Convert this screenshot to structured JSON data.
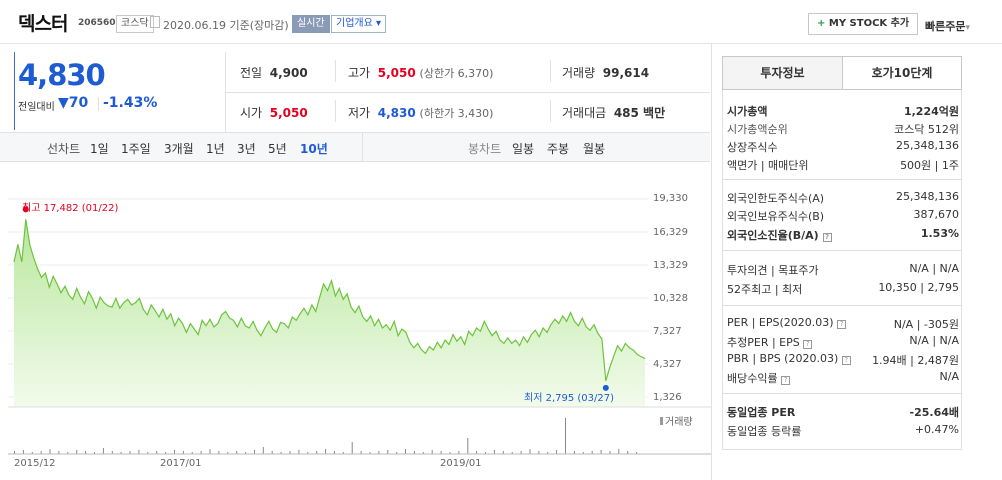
{
  "header": {
    "stock_name": "덱스터",
    "stock_code": "206560",
    "market_badge": "코스닥",
    "date_text": "2020.06.19 기준(장마감)",
    "realtime_badge": "실시간",
    "company_overview_button": "기업개요",
    "my_stock_button": "MY STOCK 추가",
    "quick_order_button": "빠른주문"
  },
  "price": {
    "current": "4,830",
    "change_label": "전일대비",
    "change_value": "70",
    "change_percent": "-1.43%"
  },
  "summary": {
    "prev_label": "전일",
    "prev_value": "4,900",
    "high_label": "고가",
    "high_value": "5,050",
    "high_limit": "(상한가 6,370)",
    "volume_label": "거래량",
    "volume_value": "99,614",
    "open_label": "시가",
    "open_value": "5,050",
    "low_label": "저가",
    "low_value": "4,830",
    "low_limit": "(하한가 3,430)",
    "amount_label": "거래대금",
    "amount_value": "485 백만"
  },
  "chart_nav": {
    "line_chart_label": "선차트",
    "periods": [
      "1일",
      "1주일",
      "3개월",
      "1년",
      "3년",
      "5년",
      "10년"
    ],
    "candle_chart_label": "봉차트",
    "candle_periods": [
      "일봉",
      "주봉",
      "월봉"
    ]
  },
  "chart_data": {
    "type": "area",
    "y_ticks": [
      "19,330",
      "16,329",
      "13,329",
      "10,328",
      "7,327",
      "4,327",
      "1,326"
    ],
    "x_ticks": [
      "2015/12",
      "2017/01",
      "2019/01"
    ],
    "high_annotation": "최고 17,482 (01/22)",
    "low_annotation": "최저 2,795 (03/27)",
    "volume_label": "거래량",
    "ylim": [
      1326,
      19330
    ],
    "values": [
      13600,
      15200,
      13600,
      17482,
      15200,
      14000,
      13000,
      12200,
      12600,
      11300,
      12300,
      11600,
      10800,
      11400,
      10600,
      10200,
      11200,
      10400,
      9800,
      10900,
      10300,
      9400,
      10400,
      9900,
      9600,
      9500,
      10300,
      9400,
      9900,
      10200,
      9700,
      9900,
      10300,
      9300,
      8800,
      9700,
      9200,
      8600,
      9300,
      8400,
      8900,
      7800,
      8500,
      8000,
      7200,
      8000,
      7500,
      7000,
      8300,
      7800,
      8400,
      7700,
      8000,
      8800,
      9100,
      8500,
      8300,
      7700,
      8500,
      7800,
      7600,
      8200,
      7400,
      6900,
      7600,
      8200,
      7500,
      7200,
      8100,
      8000,
      7600,
      8600,
      8300,
      8900,
      9400,
      8800,
      9700,
      9100,
      10400,
      11600,
      11000,
      11900,
      10500,
      11200,
      10200,
      10700,
      9500,
      9000,
      9600,
      8600,
      8200,
      8700,
      7800,
      8400,
      7600,
      7900,
      7400,
      8200,
      6900,
      7500,
      7200,
      6300,
      5800,
      6200,
      5600,
      5300,
      5900,
      5600,
      6300,
      5800,
      6500,
      6100,
      7000,
      6400,
      6800,
      6100,
      7300,
      6900,
      7600,
      7300,
      8200,
      7500,
      6900,
      7300,
      6500,
      6200,
      6700,
      6200,
      6500,
      6000,
      6800,
      6300,
      7000,
      7400,
      6800,
      7600,
      7200,
      7900,
      8400,
      8000,
      8700,
      8200,
      9000,
      8200,
      7800,
      8500,
      7700,
      7400,
      7900,
      7100,
      6600,
      2795,
      4000,
      5000,
      6000,
      5500,
      6200,
      5800,
      5600,
      5200,
      5000,
      4830
    ]
  },
  "invest_info": {
    "tab_active": "투자정보",
    "tab_inactive": "호가10단계",
    "rows1": [
      {
        "label": "시가총액",
        "value": "1,224억원"
      },
      {
        "label": "시가총액순위",
        "value": "코스닥 512위"
      },
      {
        "label": "상장주식수",
        "value": "25,348,136"
      },
      {
        "label": "액면가 | 매매단위",
        "value": "500원 | 1주"
      }
    ],
    "rows2": [
      {
        "label": "외국인한도주식수(A)",
        "value": "25,348,136"
      },
      {
        "label": "외국인보유주식수(B)",
        "value": "387,670"
      },
      {
        "label": "외국인소진율(B/A)",
        "value": "1.53%"
      }
    ],
    "rows3": [
      {
        "label": "투자의견 | 목표주가",
        "value": "N/A | N/A"
      },
      {
        "label": "52주최고 | 최저",
        "value": "10,350 | 2,795"
      }
    ],
    "rows4": [
      {
        "label": "PER | EPS(2020.03)",
        "value": "N/A | -305원"
      },
      {
        "label": "추정PER | EPS",
        "value": "N/A | N/A"
      },
      {
        "label": "PBR | BPS (2020.03)",
        "value": "1.94배 | 2,487원"
      },
      {
        "label": "배당수익률",
        "value": "N/A"
      }
    ],
    "rows5": [
      {
        "label": "동일업종 PER",
        "value": "-25.64배"
      },
      {
        "label": "동일업종 등락률",
        "value": "+0.47%"
      }
    ]
  }
}
